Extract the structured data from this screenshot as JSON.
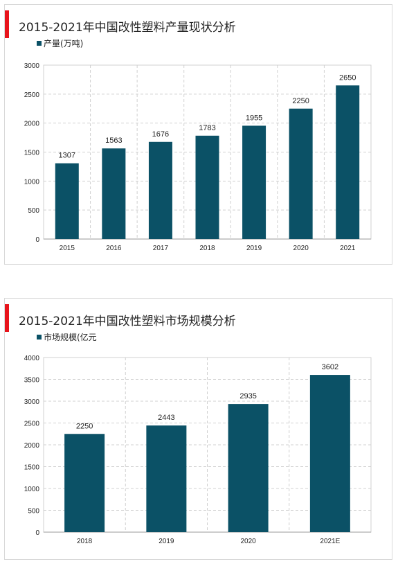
{
  "colors": {
    "accent": "#e8141b",
    "bar": "#0b5166",
    "grid": "#d0d0d0"
  },
  "chart_data": [
    {
      "type": "bar",
      "title": "2015-2021年中国改性塑料产量现状分析",
      "categories": [
        "2015",
        "2016",
        "2017",
        "2018",
        "2019",
        "2020",
        "2021"
      ],
      "series": [
        {
          "name": "产量(万吨)",
          "values": [
            1307,
            1563,
            1676,
            1783,
            1955,
            2250,
            2650
          ]
        }
      ],
      "ylim": [
        0,
        3000
      ],
      "yticks": [
        0,
        500,
        1000,
        1500,
        2000,
        2500,
        3000
      ],
      "grid": true,
      "legend": "top-left"
    },
    {
      "type": "bar",
      "title": "2015-2021年中国改性塑料市场规模分析",
      "categories": [
        "2018",
        "2019",
        "2020",
        "2021E"
      ],
      "series": [
        {
          "name": "市场规模(亿元",
          "values": [
            2250,
            2443,
            2935,
            3602
          ]
        }
      ],
      "ylim": [
        0,
        4000
      ],
      "yticks": [
        0,
        500,
        1000,
        1500,
        2000,
        2500,
        3000,
        3500,
        4000
      ],
      "grid": true,
      "legend": "top-left"
    }
  ]
}
